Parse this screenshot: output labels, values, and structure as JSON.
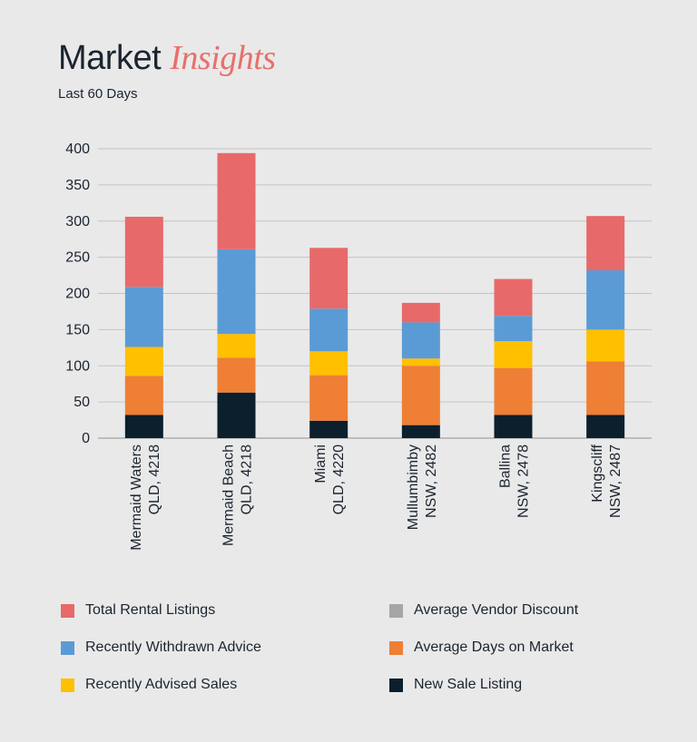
{
  "header": {
    "title_main": "Market ",
    "title_accent": "Insights",
    "subtitle": "Last 60 Days"
  },
  "colors": {
    "text": "#1b2430",
    "grid": "#c4c4c4",
    "accent": "#e86f6a"
  },
  "chart_data": {
    "type": "bar",
    "stacked": true,
    "title": "",
    "xlabel": "",
    "ylabel": "",
    "ylim": [
      0,
      400
    ],
    "yticks": [
      0,
      50,
      100,
      150,
      200,
      250,
      300,
      350,
      400
    ],
    "grid": true,
    "legend_position": "bottom",
    "categories": [
      [
        "Mermaid Waters",
        "QLD, 4218"
      ],
      [
        "Mermaid Beach",
        "QLD, 4218"
      ],
      [
        "Miami",
        "QLD, 4220"
      ],
      [
        "Mullumbimby",
        "NSW, 2482"
      ],
      [
        "Ballina",
        "NSW, 2478"
      ],
      [
        "Kingscliff",
        "NSW, 2487"
      ]
    ],
    "series": [
      {
        "name": "New Sale Listing",
        "color": "#0b1f2d",
        "values": [
          32,
          63,
          24,
          18,
          32,
          32
        ]
      },
      {
        "name": "Average Days on Market",
        "color": "#ee7f35",
        "values": [
          54,
          48,
          63,
          82,
          65,
          74
        ]
      },
      {
        "name": "Average Vendor Discount",
        "color": "#a6a6a6",
        "values": [
          0,
          0,
          0,
          0,
          0,
          0
        ]
      },
      {
        "name": "Recently Advised Sales",
        "color": "#ffc000",
        "values": [
          40,
          33,
          33,
          10,
          37,
          44
        ]
      },
      {
        "name": "Recently Withdrawn Advice",
        "color": "#5b9bd5",
        "values": [
          83,
          117,
          59,
          50,
          35,
          82
        ]
      },
      {
        "name": "Total Rental Listings",
        "color": "#e8696a",
        "values": [
          97,
          133,
          84,
          27,
          51,
          75
        ]
      }
    ],
    "legend": [
      [
        "Total Rental Listings",
        "Average Vendor Discount"
      ],
      [
        "Recently Withdrawn Advice",
        "Average Days on Market"
      ],
      [
        "Recently Advised Sales",
        "New Sale Listing"
      ]
    ]
  }
}
